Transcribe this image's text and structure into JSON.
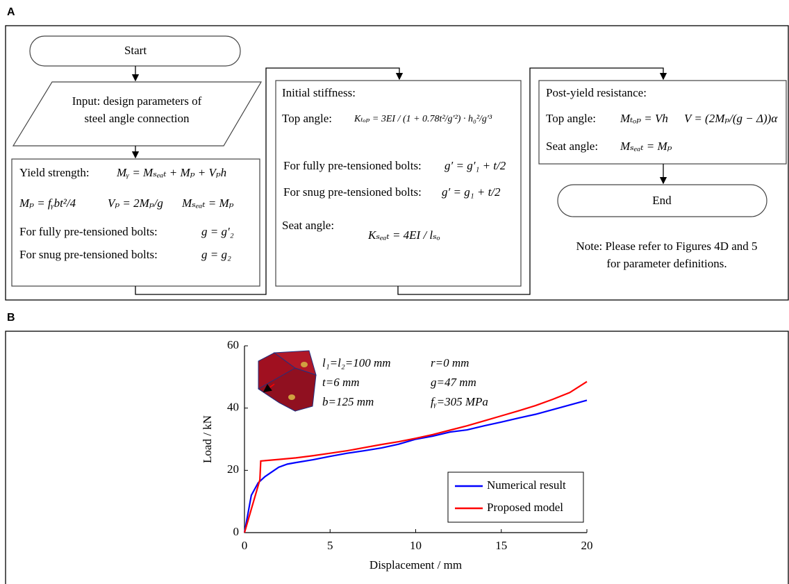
{
  "panel_a": {
    "label": "A",
    "start": "Start",
    "end": "End",
    "input": [
      "Input: design parameters of",
      "steel angle connection"
    ],
    "yield": [
      "Yield strength:",
      "Mᵧ = Mₛₑₐₜ + Mₚ + Vₚh",
      "Mₚ = fᵧbt²/4",
      "Vₚ = 2Mₚ/g",
      "Mₛₑₐₜ = Mₚ",
      "For fully pre-tensioned bolts:",
      "g = g′₂",
      "For snug pre-tensioned bolts:",
      "g = g₂"
    ],
    "stiffness": [
      "Initial stiffness:",
      "Top angle:",
      "Kₜₒₚ = 3EI / (1 + 0.78t²/g′²) · h₀²/g′³",
      "For fully pre-tensioned bolts:",
      "g′ = g′₁ + t/2",
      "For snug pre-tensioned bolts:",
      "g′ = g₁ + t/2",
      "Seat angle:",
      "Kₛₑₐₜ = 4EI / lₛₒ"
    ],
    "post_yield": [
      "Post-yield resistance:",
      "Top angle:",
      "Mₜₒₚ = Vh",
      "V = (2Mₚ/(g − Δ))α",
      "Seat angle:",
      "Mₛₑₐₜ = Mₚ"
    ],
    "note": [
      "Note: Please refer to Figures 4D and 5",
      "for parameter definitions."
    ]
  },
  "panel_b_label": "B",
  "chart_data": {
    "type": "line",
    "x_label": "Displacement  / mm",
    "y_label": "Load / kN",
    "annotations": [
      "l₁=l₂=100 mm",
      "r=0 mm",
      "t=6 mm",
      "g=47 mm",
      "b=125 mm",
      "fᵧ=305 MPa"
    ],
    "xlim": [
      0,
      20
    ],
    "ylim": [
      0,
      60
    ],
    "xticks": [
      0,
      5,
      10,
      15,
      20
    ],
    "yticks": [
      0,
      20,
      40,
      60
    ],
    "grid": false,
    "legend": "lower right",
    "series": [
      {
        "name": "Numerical result",
        "color": "#0000ff",
        "x": [
          0,
          0.2,
          0.4,
          0.8,
          1.2,
          1.6,
          2,
          2.5,
          3,
          4,
          5,
          6,
          7,
          8,
          9,
          10,
          11,
          12,
          13,
          14,
          15,
          16,
          17,
          18,
          19,
          20
        ],
        "values": [
          0,
          6,
          12,
          16,
          18,
          19.5,
          21,
          22,
          22.5,
          23.4,
          24.5,
          25.5,
          26.3,
          27.2,
          28.4,
          30,
          31,
          32.3,
          33,
          34.3,
          35.5,
          36.8,
          38,
          39.5,
          41,
          42.5
        ]
      },
      {
        "name": "Proposed model",
        "color": "#ff0000",
        "x": [
          0,
          0.9,
          0.95,
          2,
          3,
          4,
          5,
          6,
          7,
          8,
          9,
          10,
          11,
          12,
          13,
          14,
          15,
          16,
          17,
          18,
          19,
          20
        ],
        "values": [
          0,
          17,
          23,
          23.5,
          24,
          24.7,
          25.5,
          26.3,
          27.3,
          28.3,
          29.2,
          30.3,
          31.5,
          32.9,
          34.3,
          35.9,
          37.5,
          39.1,
          40.8,
          42.8,
          45,
          48.5
        ]
      }
    ]
  }
}
